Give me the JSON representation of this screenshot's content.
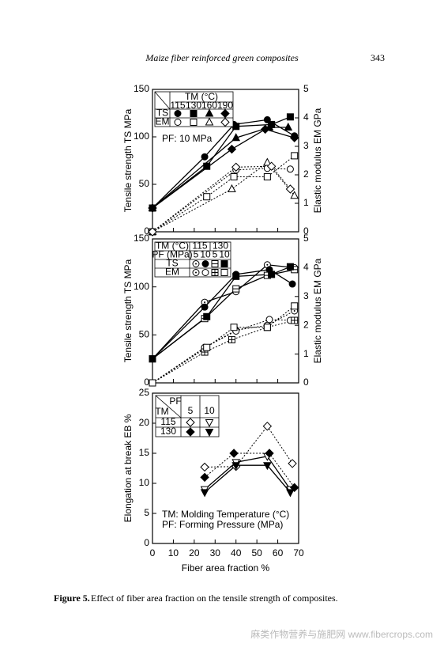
{
  "header": {
    "title": "Maize fiber reinforced green composites",
    "page": "343"
  },
  "chart_data": [
    {
      "type": "line",
      "ylabel": "Tensile strength  TS  MPa",
      "y2label": "Elastic modulus  EM  GPa",
      "annotations": [
        "PF: 10 MPa"
      ],
      "xlim": [
        0,
        70
      ],
      "xticks": [
        0,
        10,
        20,
        30,
        40,
        50,
        60,
        70
      ],
      "xtick_labels": false,
      "ylim": [
        0,
        150
      ],
      "yticks": [
        0,
        50,
        100,
        150
      ],
      "y2lim": [
        0,
        5
      ],
      "y2ticks": [
        0,
        1,
        2,
        3,
        4,
        5
      ],
      "legend": {
        "title": "TM (°C)",
        "columns": [
          115,
          130,
          160,
          190
        ],
        "rows": [
          "TS",
          "EM"
        ]
      },
      "series": [
        {
          "marker": "circle",
          "filled": true,
          "dash": false,
          "color": "#000",
          "x": [
            0,
            25,
            39,
            55,
            68
          ],
          "values": [
            25,
            79,
            113,
            118,
            101
          ]
        },
        {
          "marker": "square",
          "filled": true,
          "dash": false,
          "color": "#000",
          "x": [
            0,
            26,
            40,
            57,
            66
          ],
          "values": [
            25,
            69,
            111,
            113,
            121
          ]
        },
        {
          "marker": "triangle",
          "filled": true,
          "dash": false,
          "color": "#000",
          "x": [
            0,
            40,
            56,
            65
          ],
          "values": [
            25,
            99,
            110,
            110
          ]
        },
        {
          "marker": "diamond",
          "filled": true,
          "dash": false,
          "color": "#000",
          "x": [
            0,
            38,
            54,
            68
          ],
          "values": [
            25,
            87,
            108,
            99
          ]
        },
        {
          "marker": "circle",
          "filled": false,
          "dash": true,
          "axis": "y2",
          "color": "#000",
          "x": [
            0,
            40,
            55,
            66
          ],
          "values": [
            0,
            2.17,
            2.23,
            2.2
          ]
        },
        {
          "marker": "square",
          "filled": false,
          "dash": true,
          "axis": "y2",
          "color": "#000",
          "x": [
            0,
            26,
            39,
            55,
            68
          ],
          "values": [
            0,
            1.23,
            1.93,
            1.93,
            2.67
          ]
        },
        {
          "marker": "triangle",
          "filled": false,
          "dash": true,
          "axis": "y2",
          "color": "#000",
          "x": [
            0,
            38,
            55,
            68
          ],
          "values": [
            0,
            1.5,
            2.43,
            1.27
          ]
        },
        {
          "marker": "diamond",
          "filled": false,
          "dash": true,
          "axis": "y2",
          "color": "#000",
          "x": [
            0,
            40,
            57,
            66
          ],
          "values": [
            0,
            2.27,
            2.3,
            1.5
          ]
        }
      ]
    },
    {
      "type": "line",
      "ylabel": "Tensile strength  TS  MPa",
      "y2label": "Elastic modulus  EM  GPa",
      "xlim": [
        0,
        70
      ],
      "xticks": [
        0,
        10,
        20,
        30,
        40,
        50,
        60,
        70
      ],
      "xtick_labels": false,
      "ylim": [
        0,
        150
      ],
      "yticks": [
        0,
        50,
        100,
        150
      ],
      "y2lim": [
        0,
        5
      ],
      "y2ticks": [
        0,
        1,
        2,
        3,
        4,
        5
      ],
      "legend": {
        "title": "TM (°C)",
        "subtitle": "PF (MPa)",
        "groups": [
          115,
          130
        ],
        "columns": [
          5,
          10,
          5,
          10
        ],
        "rows": [
          "TS",
          "EM"
        ]
      },
      "series": [
        {
          "marker": "circle-dot",
          "filled": false,
          "dash": false,
          "color": "#000",
          "x": [
            0,
            25,
            40,
            55,
            68
          ],
          "values": [
            25,
            84,
            95,
            123,
            120
          ]
        },
        {
          "marker": "circle",
          "filled": true,
          "dash": false,
          "color": "#000",
          "x": [
            0,
            25,
            40,
            56,
            67
          ],
          "values": [
            25,
            79,
            113,
            118,
            103
          ]
        },
        {
          "marker": "square-line",
          "filled": false,
          "dash": false,
          "color": "#000",
          "x": [
            0,
            25,
            40,
            55,
            68
          ],
          "values": [
            25,
            67,
            98,
            112,
            118
          ]
        },
        {
          "marker": "square",
          "filled": true,
          "dash": false,
          "color": "#000",
          "x": [
            0,
            26,
            40,
            57,
            66
          ],
          "values": [
            25,
            69,
            111,
            113,
            121
          ]
        },
        {
          "marker": "circle-dot",
          "filled": false,
          "dash": true,
          "axis": "y2",
          "color": "#000",
          "x": [
            0,
            25,
            40,
            55,
            68
          ],
          "values": [
            0,
            1.23,
            1.83,
            2.0,
            2.5
          ]
        },
        {
          "marker": "circle",
          "filled": false,
          "dash": true,
          "axis": "y2",
          "color": "#000",
          "x": [
            0,
            25,
            40,
            56,
            66
          ],
          "values": [
            0,
            1.23,
            1.8,
            2.2,
            2.17
          ]
        },
        {
          "marker": "square-plus",
          "filled": false,
          "dash": true,
          "axis": "y2",
          "color": "#000",
          "x": [
            0,
            25,
            38,
            55,
            68
          ],
          "values": [
            0,
            1.07,
            1.5,
            1.93,
            2.17
          ]
        },
        {
          "marker": "square",
          "filled": false,
          "dash": true,
          "axis": "y2",
          "color": "#000",
          "x": [
            0,
            26,
            39,
            55,
            68
          ],
          "values": [
            0,
            1.23,
            1.93,
            1.93,
            2.67
          ]
        }
      ]
    },
    {
      "type": "line",
      "ylabel": "Elongation at break  EB  %",
      "xlabel": "Fiber area fraction  %",
      "annotations": [
        "TM: Molding Temperature (°C)",
        "PF: Forming Pressure (MPa)"
      ],
      "xlim": [
        0,
        70
      ],
      "xticks": [
        0,
        10,
        20,
        30,
        40,
        50,
        60,
        70
      ],
      "xtick_labels": true,
      "ylim": [
        0,
        25
      ],
      "yticks": [
        0,
        5,
        10,
        15,
        20,
        25
      ],
      "legend": {
        "title": "PF",
        "subtitle": "TM",
        "columns": [
          5,
          10
        ],
        "rows": [
          115,
          130
        ]
      },
      "series": [
        {
          "marker": "diamond",
          "filled": false,
          "dash": true,
          "color": "#000",
          "x": [
            25,
            40,
            55,
            67
          ],
          "values": [
            12.7,
            12.8,
            19.5,
            13.3
          ]
        },
        {
          "marker": "triangle-down",
          "filled": false,
          "dash": false,
          "color": "#000",
          "x": [
            25,
            40,
            55,
            66
          ],
          "values": [
            9,
            13.5,
            14.5,
            9
          ]
        },
        {
          "marker": "diamond",
          "filled": true,
          "dash": true,
          "color": "#000",
          "x": [
            25,
            39,
            56,
            68
          ],
          "values": [
            11,
            15,
            15,
            9.3
          ]
        },
        {
          "marker": "triangle-down",
          "filled": true,
          "dash": false,
          "color": "#000",
          "x": [
            25,
            40,
            55,
            66
          ],
          "values": [
            8.5,
            13,
            13,
            8.5
          ]
        }
      ]
    }
  ],
  "caption": {
    "label": "Figure 5.",
    "text": "Effect of fiber area fraction on the tensile strength of composites."
  },
  "watermark": "麻类作物营养与施肥网 www.fibercrops.com"
}
